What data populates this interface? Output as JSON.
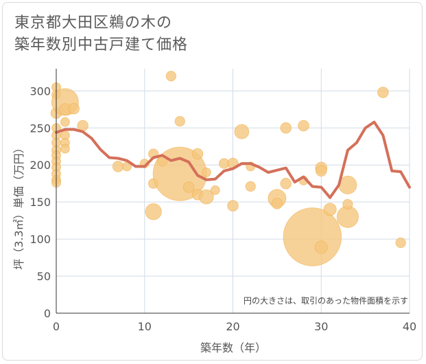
{
  "title_line1": "東京都大田区鵜の木の",
  "title_line2": "築年数別中古戸建て価格",
  "chart_data": {
    "type": "scatter",
    "title": "東京都大田区鵜の木の築年数別中古戸建て価格",
    "xlabel": "築年数（年）",
    "ylabel": "坪（3.3㎡）単価（万円）",
    "note": "円の大きさは、取引のあった物件面積を示す",
    "xlim": [
      0,
      40
    ],
    "ylim": [
      0,
      330
    ],
    "xticks": [
      "0",
      "10",
      "20",
      "30",
      "40"
    ],
    "yticks": [
      "0",
      "50",
      "100",
      "150",
      "200",
      "250",
      "300"
    ],
    "grid": true,
    "colors": {
      "bubble_fill": "#f5c77e",
      "bubble_stroke": "#f0b050",
      "line": "#d4705a",
      "grid": "#d0dbe6",
      "axis": "#333333"
    },
    "scatter": [
      {
        "x": 0,
        "y": 305,
        "size": 1
      },
      {
        "x": 0,
        "y": 295,
        "size": 1
      },
      {
        "x": 0,
        "y": 270,
        "size": 1.2
      },
      {
        "x": 0,
        "y": 250,
        "size": 1
      },
      {
        "x": 0,
        "y": 240,
        "size": 1
      },
      {
        "x": 0,
        "y": 230,
        "size": 1
      },
      {
        "x": 0,
        "y": 220,
        "size": 1
      },
      {
        "x": 0,
        "y": 213,
        "size": 1
      },
      {
        "x": 0,
        "y": 205,
        "size": 1
      },
      {
        "x": 0,
        "y": 197,
        "size": 1
      },
      {
        "x": 0,
        "y": 188,
        "size": 1
      },
      {
        "x": 0,
        "y": 180,
        "size": 1
      },
      {
        "x": 0,
        "y": 176,
        "size": 1
      },
      {
        "x": 1,
        "y": 285,
        "size": 3
      },
      {
        "x": 1,
        "y": 275,
        "size": 1.3
      },
      {
        "x": 1,
        "y": 258,
        "size": 1
      },
      {
        "x": 1,
        "y": 240,
        "size": 1
      },
      {
        "x": 1,
        "y": 230,
        "size": 1
      },
      {
        "x": 1,
        "y": 222,
        "size": 1
      },
      {
        "x": 2,
        "y": 276,
        "size": 1.2
      },
      {
        "x": 3,
        "y": 253,
        "size": 1.2
      },
      {
        "x": 7,
        "y": 198,
        "size": 1.2
      },
      {
        "x": 8,
        "y": 198,
        "size": 1
      },
      {
        "x": 10,
        "y": 202,
        "size": 1
      },
      {
        "x": 11,
        "y": 215,
        "size": 1.1
      },
      {
        "x": 11,
        "y": 175,
        "size": 1.1
      },
      {
        "x": 11,
        "y": 137,
        "size": 1.8
      },
      {
        "x": 12,
        "y": 205,
        "size": 1.2
      },
      {
        "x": 13,
        "y": 320,
        "size": 1.1
      },
      {
        "x": 14,
        "y": 188,
        "size": 6
      },
      {
        "x": 14,
        "y": 259,
        "size": 1.1
      },
      {
        "x": 15,
        "y": 170,
        "size": 1.2
      },
      {
        "x": 16,
        "y": 215,
        "size": 1.2
      },
      {
        "x": 16,
        "y": 160,
        "size": 1.2
      },
      {
        "x": 17,
        "y": 157,
        "size": 1.6
      },
      {
        "x": 17,
        "y": 190,
        "size": 1
      },
      {
        "x": 18,
        "y": 166,
        "size": 1
      },
      {
        "x": 19,
        "y": 202,
        "size": 1.1
      },
      {
        "x": 20,
        "y": 202,
        "size": 1.2
      },
      {
        "x": 20,
        "y": 145,
        "size": 1.2
      },
      {
        "x": 21,
        "y": 245,
        "size": 1.6
      },
      {
        "x": 22,
        "y": 198,
        "size": 1
      },
      {
        "x": 22,
        "y": 171,
        "size": 1.1
      },
      {
        "x": 25,
        "y": 155,
        "size": 2
      },
      {
        "x": 25,
        "y": 148,
        "size": 1.2
      },
      {
        "x": 26,
        "y": 250,
        "size": 1.2
      },
      {
        "x": 26,
        "y": 175,
        "size": 1.2
      },
      {
        "x": 28,
        "y": 253,
        "size": 1.2
      },
      {
        "x": 28,
        "y": 179,
        "size": 1
      },
      {
        "x": 29,
        "y": 103,
        "size": 6.5
      },
      {
        "x": 30,
        "y": 196,
        "size": 1.3
      },
      {
        "x": 30,
        "y": 192,
        "size": 1.2
      },
      {
        "x": 30,
        "y": 89,
        "size": 1.4
      },
      {
        "x": 31,
        "y": 140,
        "size": 1.4
      },
      {
        "x": 33,
        "y": 173,
        "size": 2
      },
      {
        "x": 33,
        "y": 130,
        "size": 2.4
      },
      {
        "x": 33,
        "y": 147,
        "size": 1.1
      },
      {
        "x": 37,
        "y": 298,
        "size": 1.2
      },
      {
        "x": 39,
        "y": 95,
        "size": 1.1
      }
    ],
    "line": {
      "x": [
        0,
        1,
        2,
        3,
        4,
        5,
        6,
        7,
        8,
        9,
        10,
        11,
        12,
        13,
        14,
        15,
        16,
        17,
        18,
        19,
        20,
        21,
        22,
        23,
        24,
        25,
        26,
        27,
        28,
        29,
        30,
        31,
        32,
        33,
        34,
        35,
        36,
        37,
        38,
        39,
        40
      ],
      "y": [
        244,
        248,
        248,
        245,
        236,
        221,
        210,
        209,
        206,
        198,
        198,
        210,
        213,
        206,
        209,
        204,
        186,
        180,
        181,
        192,
        195,
        202,
        202,
        197,
        190,
        193,
        196,
        177,
        184,
        171,
        170,
        156,
        173,
        220,
        230,
        250,
        258,
        240,
        192,
        191,
        170
      ]
    }
  }
}
